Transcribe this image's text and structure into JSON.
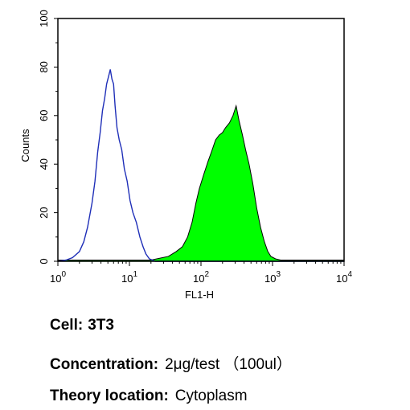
{
  "chart_data": {
    "type": "area",
    "xlabel": "FL1-H",
    "ylabel": "Counts",
    "x_scale": "log",
    "xlim": [
      1,
      10000
    ],
    "ylim": [
      0,
      100
    ],
    "x_ticks": [
      {
        "value": 1,
        "base": "10",
        "exp": "0"
      },
      {
        "value": 10,
        "base": "10",
        "exp": "1"
      },
      {
        "value": 100,
        "base": "10",
        "exp": "2"
      },
      {
        "value": 1000,
        "base": "10",
        "exp": "3"
      },
      {
        "value": 10000,
        "base": "10",
        "exp": "4"
      }
    ],
    "y_ticks": [
      "0",
      "20",
      "40",
      "60",
      "80",
      "100"
    ],
    "grid": false,
    "series": [
      {
        "style": "outline",
        "color": "#1f2fb8",
        "points": [
          [
            1.0,
            0
          ],
          [
            1.3,
            0.5
          ],
          [
            1.6,
            1.5
          ],
          [
            2.0,
            4
          ],
          [
            2.3,
            8
          ],
          [
            2.6,
            14
          ],
          [
            3.0,
            24
          ],
          [
            3.3,
            33
          ],
          [
            3.6,
            45
          ],
          [
            3.9,
            53
          ],
          [
            4.2,
            62
          ],
          [
            4.5,
            67
          ],
          [
            4.8,
            73
          ],
          [
            5.1,
            76
          ],
          [
            5.4,
            79
          ],
          [
            5.7,
            75
          ],
          [
            6.0,
            73
          ],
          [
            6.3,
            64
          ],
          [
            6.7,
            55
          ],
          [
            7.2,
            50
          ],
          [
            7.8,
            46
          ],
          [
            8.5,
            38
          ],
          [
            9.3,
            33
          ],
          [
            10.2,
            25
          ],
          [
            11.2,
            20
          ],
          [
            12.5,
            16
          ],
          [
            14.0,
            10
          ],
          [
            15.5,
            6
          ],
          [
            17.0,
            3
          ],
          [
            19.0,
            1
          ],
          [
            21.0,
            0.5
          ],
          [
            23.0,
            0
          ],
          [
            10000,
            0
          ]
        ]
      },
      {
        "style": "filled",
        "color": "#00ff00",
        "points": [
          [
            1.0,
            0.5
          ],
          [
            20,
            0.5
          ],
          [
            35,
            2
          ],
          [
            45,
            4
          ],
          [
            55,
            6
          ],
          [
            65,
            10
          ],
          [
            75,
            16
          ],
          [
            85,
            24
          ],
          [
            95,
            30
          ],
          [
            110,
            36
          ],
          [
            125,
            41
          ],
          [
            140,
            45
          ],
          [
            160,
            50
          ],
          [
            180,
            52
          ],
          [
            200,
            53
          ],
          [
            220,
            55
          ],
          [
            250,
            57
          ],
          [
            280,
            60
          ],
          [
            310,
            64
          ],
          [
            340,
            58
          ],
          [
            380,
            52
          ],
          [
            420,
            46
          ],
          [
            470,
            40
          ],
          [
            530,
            32
          ],
          [
            600,
            22
          ],
          [
            680,
            14
          ],
          [
            770,
            8
          ],
          [
            860,
            4
          ],
          [
            950,
            2
          ],
          [
            1100,
            1
          ],
          [
            1300,
            0.5
          ],
          [
            10000,
            0.5
          ]
        ]
      }
    ]
  },
  "info": {
    "cell_label": "Cell:",
    "cell_value": "3T3",
    "concentration_label": "Concentration:",
    "concentration_value": "2μg/test （100ul）",
    "theory_label": "Theory location:",
    "theory_value": "Cytoplasm"
  }
}
